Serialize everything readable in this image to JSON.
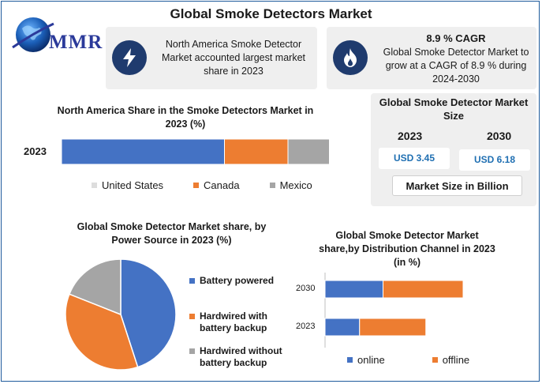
{
  "title": "Global Smoke Detectors Market",
  "logo": {
    "text": "MMR",
    "icon": "globe-icon"
  },
  "card_na": {
    "text": "North America Smoke Detector Market accounted largest market share in 2023",
    "icon": "bolt-icon"
  },
  "card_cagr": {
    "heading": "8.9 % CAGR",
    "text": "Global Smoke Detector Market to grow at a CAGR of 8.9 % during 2024-2030",
    "icon": "flame-icon"
  },
  "size_panel": {
    "title": "Global Smoke Detector Market Size",
    "year1": "2023",
    "year2": "2030",
    "value1": "USD 3.45",
    "value2": "USD 6.18",
    "footer": "Market Size in Billion"
  },
  "colors": {
    "blue": "#4472c4",
    "orange": "#ed7d31",
    "gray": "#a5a5a5",
    "dark_blue": "#1f3b6e",
    "value_blue": "#1f6fb2"
  },
  "chart_data": [
    {
      "type": "bar",
      "orientation": "horizontal",
      "stacked": true,
      "title": "North America Share in the Smoke Detectors Market in 2023 (%)",
      "categories": [
        "2023"
      ],
      "series": [
        {
          "name": "United States",
          "values": [
            59
          ]
        },
        {
          "name": "Canada",
          "values": [
            23
          ]
        },
        {
          "name": "Mexico",
          "values": [
            15
          ]
        }
      ],
      "legend": "bottom"
    },
    {
      "type": "pie",
      "title": "Global Smoke Detector Market share, by Power Source in 2023  (%)",
      "labels": [
        "Battery powered",
        "Hardwired with battery backup",
        "Hardwired without battery backup"
      ],
      "values": [
        45,
        36,
        19
      ],
      "legend": "right"
    },
    {
      "type": "bar",
      "orientation": "horizontal",
      "stacked": true,
      "title": "Global Smoke Detector Market share,by Distribution Channel in 2023 (in %)",
      "categories": [
        "2030",
        "2023"
      ],
      "series": [
        {
          "name": "online",
          "values": [
            42,
            25
          ]
        },
        {
          "name": "offline",
          "values": [
            58,
            48
          ]
        }
      ],
      "legend": "bottom"
    }
  ]
}
